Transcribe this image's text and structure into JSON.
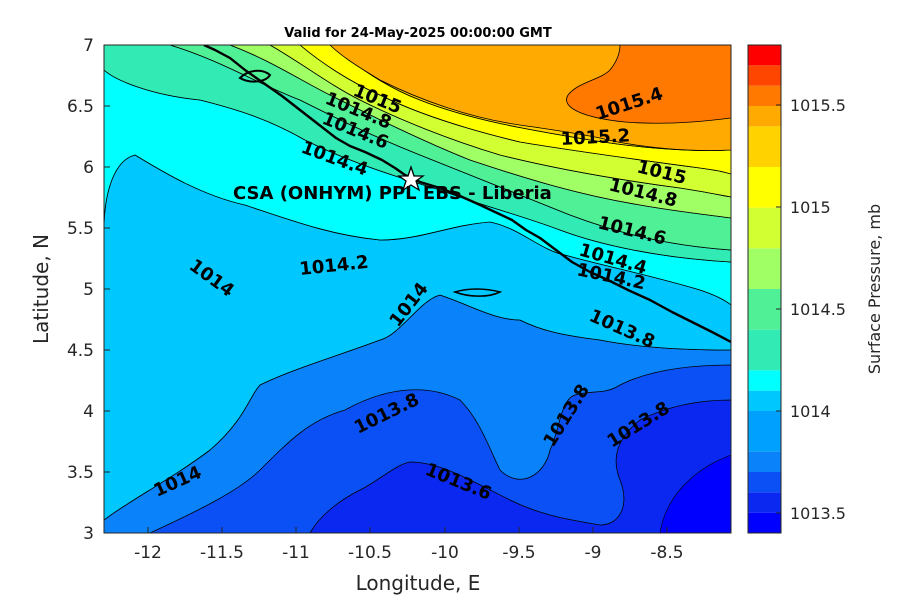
{
  "title": "Valid for 24-May-2025 00:00:00 GMT",
  "xlabel": "Longitude, E",
  "ylabel": "Latitude, N",
  "colorbar_label": "Surface Pressure, mb",
  "site_label": "CSA (ONHYM) PPL EBS  - Liberia",
  "site_marker": "star-icon",
  "chart_data": {
    "type": "heatmap",
    "variable": "Surface Pressure",
    "units": "mb",
    "xlim": [
      -12.3,
      -8.25
    ],
    "ylim": [
      3,
      7
    ],
    "x_ticks": [
      "-12",
      "-11.5",
      "-11",
      "-10.5",
      "-10",
      "-9.5",
      "-9",
      "-8.5"
    ],
    "y_ticks": [
      "3",
      "3.5",
      "4",
      "4.5",
      "5",
      "5.5",
      "6",
      "6.5",
      "7"
    ],
    "colorbar_ticks": [
      "1013.5",
      "1014",
      "1014.5",
      "1015",
      "1015.5"
    ],
    "color_levels": [
      {
        "min": 1013.4,
        "max": 1013.5,
        "color": "#0000FF"
      },
      {
        "min": 1013.5,
        "max": 1013.6,
        "color": "#0A28F0"
      },
      {
        "min": 1013.6,
        "max": 1013.7,
        "color": "#0A50F5"
      },
      {
        "min": 1013.7,
        "max": 1013.8,
        "color": "#0A82FA"
      },
      {
        "min": 1013.8,
        "max": 1014.0,
        "color": "#00A0FF"
      },
      {
        "min": 1014.0,
        "max": 1014.1,
        "color": "#00C8FF"
      },
      {
        "min": 1014.1,
        "max": 1014.2,
        "color": "#00FFFF"
      },
      {
        "min": 1014.2,
        "max": 1014.4,
        "color": "#32EBB4"
      },
      {
        "min": 1014.4,
        "max": 1014.6,
        "color": "#50F096"
      },
      {
        "min": 1014.6,
        "max": 1014.8,
        "color": "#A0FF64"
      },
      {
        "min": 1014.8,
        "max": 1015.0,
        "color": "#D2FF32"
      },
      {
        "min": 1015.0,
        "max": 1015.2,
        "color": "#FFFF00"
      },
      {
        "min": 1015.2,
        "max": 1015.4,
        "color": "#FFD200"
      },
      {
        "min": 1015.4,
        "max": 1015.5,
        "color": "#FFAA00"
      },
      {
        "min": 1015.5,
        "max": 1015.6,
        "color": "#FF7800"
      },
      {
        "min": 1015.6,
        "max": 1015.7,
        "color": "#FF4600"
      },
      {
        "min": 1015.7,
        "max": 1015.8,
        "color": "#FF0000"
      }
    ],
    "contour_labels": [
      "1015.4",
      "1015.2",
      "1015",
      "1015",
      "1014.8",
      "1014.8",
      "1014.6",
      "1014.6",
      "1014.4",
      "1014.4",
      "1014.2",
      "1014.2",
      "1014",
      "1014",
      "1014",
      "1013.8",
      "1013.8",
      "1013.8",
      "1013.8",
      "1013.6",
      "1013.6"
    ],
    "site": {
      "name": "CSA (ONHYM) PPL EBS  - Liberia",
      "lon": -10.3,
      "lat": 5.92
    }
  }
}
